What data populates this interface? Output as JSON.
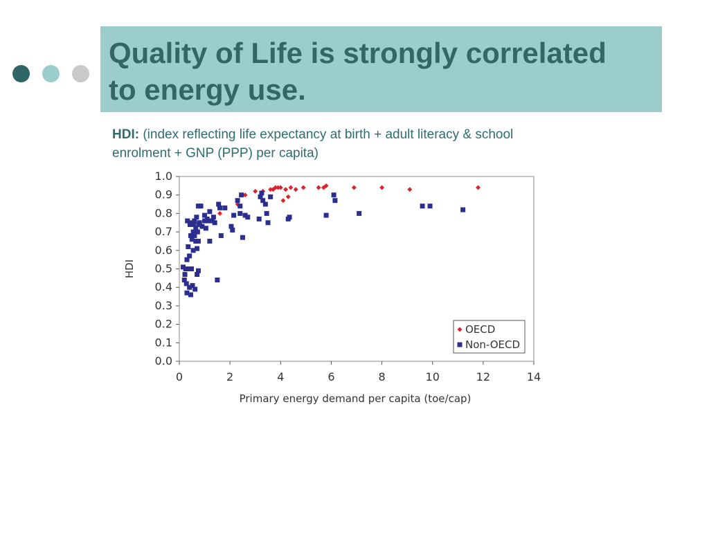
{
  "colors": {
    "title_band": "#9ccdcd",
    "title_text": "#336666",
    "dot_dark": "#2e6565",
    "dot_mid": "#9ccdcd",
    "dot_light": "#c9c9c9",
    "oecd": "#d9262e",
    "non_oecd": "#2b2e8f"
  },
  "slide": {
    "title_line1": "Quality of Life is strongly correlated",
    "title_line2": "to energy use.",
    "subtitle_lead": "HDI:",
    "subtitle_text": "(index reflecting life expectancy at birth + adult literacy & school enrolment + GNP (PPP) per capita)"
  },
  "chart_data": {
    "type": "scatter",
    "title": "",
    "xlabel": "Primary energy demand per capita (toe/cap)",
    "ylabel": "HDI",
    "xlim": [
      0,
      14
    ],
    "ylim": [
      0,
      1.0
    ],
    "x_ticks": [
      "0",
      "2",
      "4",
      "6",
      "8",
      "10",
      "12",
      "14"
    ],
    "y_ticks": [
      "0.0",
      "0.1",
      "0.2",
      "0.3",
      "0.4",
      "0.5",
      "0.6",
      "0.7",
      "0.8",
      "0.9",
      "1.0"
    ],
    "grid": false,
    "legend_position": "bottom-right",
    "series": [
      {
        "name": "OECD",
        "marker": "diamond",
        "points": [
          [
            1.6,
            0.8
          ],
          [
            2.3,
            0.85
          ],
          [
            2.6,
            0.9
          ],
          [
            3.0,
            0.92
          ],
          [
            3.3,
            0.92
          ],
          [
            3.4,
            0.85
          ],
          [
            3.6,
            0.93
          ],
          [
            3.7,
            0.93
          ],
          [
            3.8,
            0.94
          ],
          [
            3.9,
            0.94
          ],
          [
            4.0,
            0.94
          ],
          [
            4.1,
            0.87
          ],
          [
            4.2,
            0.93
          ],
          [
            4.3,
            0.89
          ],
          [
            4.4,
            0.94
          ],
          [
            4.6,
            0.93
          ],
          [
            4.9,
            0.94
          ],
          [
            5.5,
            0.94
          ],
          [
            5.7,
            0.94
          ],
          [
            5.8,
            0.95
          ],
          [
            6.9,
            0.94
          ],
          [
            8.0,
            0.94
          ],
          [
            9.1,
            0.93
          ],
          [
            11.8,
            0.94
          ]
        ]
      },
      {
        "name": "Non-OECD",
        "marker": "square",
        "points": [
          [
            0.15,
            0.51
          ],
          [
            0.2,
            0.44
          ],
          [
            0.22,
            0.47
          ],
          [
            0.25,
            0.5
          ],
          [
            0.28,
            0.42
          ],
          [
            0.3,
            0.55
          ],
          [
            0.3,
            0.37
          ],
          [
            0.32,
            0.76
          ],
          [
            0.35,
            0.62
          ],
          [
            0.38,
            0.5
          ],
          [
            0.4,
            0.4
          ],
          [
            0.4,
            0.57
          ],
          [
            0.42,
            0.74
          ],
          [
            0.45,
            0.36
          ],
          [
            0.45,
            0.68
          ],
          [
            0.48,
            0.5
          ],
          [
            0.5,
            0.66
          ],
          [
            0.5,
            0.75
          ],
          [
            0.52,
            0.41
          ],
          [
            0.55,
            0.6
          ],
          [
            0.55,
            0.7
          ],
          [
            0.58,
            0.74
          ],
          [
            0.6,
            0.68
          ],
          [
            0.6,
            0.76
          ],
          [
            0.62,
            0.39
          ],
          [
            0.65,
            0.65
          ],
          [
            0.65,
            0.72
          ],
          [
            0.68,
            0.78
          ],
          [
            0.7,
            0.47
          ],
          [
            0.7,
            0.61
          ],
          [
            0.72,
            0.7
          ],
          [
            0.75,
            0.84
          ],
          [
            0.75,
            0.65
          ],
          [
            0.75,
            0.49
          ],
          [
            0.78,
            0.74
          ],
          [
            0.8,
            0.75
          ],
          [
            0.85,
            0.84
          ],
          [
            0.9,
            0.73
          ],
          [
            1.0,
            0.76
          ],
          [
            1.0,
            0.79
          ],
          [
            1.05,
            0.72
          ],
          [
            1.1,
            0.77
          ],
          [
            1.15,
            0.76
          ],
          [
            1.2,
            0.65
          ],
          [
            1.2,
            0.81
          ],
          [
            1.3,
            0.76
          ],
          [
            1.35,
            0.78
          ],
          [
            1.4,
            0.75
          ],
          [
            1.5,
            0.44
          ],
          [
            1.55,
            0.85
          ],
          [
            1.6,
            0.83
          ],
          [
            1.65,
            0.68
          ],
          [
            1.8,
            0.83
          ],
          [
            2.05,
            0.73
          ],
          [
            2.1,
            0.71
          ],
          [
            2.15,
            0.79
          ],
          [
            2.3,
            0.87
          ],
          [
            2.4,
            0.8
          ],
          [
            2.4,
            0.84
          ],
          [
            2.45,
            0.9
          ],
          [
            2.5,
            0.67
          ],
          [
            2.6,
            0.79
          ],
          [
            2.7,
            0.78
          ],
          [
            3.15,
            0.77
          ],
          [
            3.2,
            0.89
          ],
          [
            3.25,
            0.91
          ],
          [
            3.3,
            0.87
          ],
          [
            3.4,
            0.85
          ],
          [
            3.45,
            0.8
          ],
          [
            3.5,
            0.75
          ],
          [
            3.6,
            0.89
          ],
          [
            4.3,
            0.77
          ],
          [
            4.35,
            0.78
          ],
          [
            5.8,
            0.79
          ],
          [
            6.1,
            0.9
          ],
          [
            6.15,
            0.87
          ],
          [
            7.1,
            0.8
          ],
          [
            9.6,
            0.84
          ],
          [
            9.9,
            0.84
          ],
          [
            11.2,
            0.82
          ]
        ]
      }
    ]
  }
}
